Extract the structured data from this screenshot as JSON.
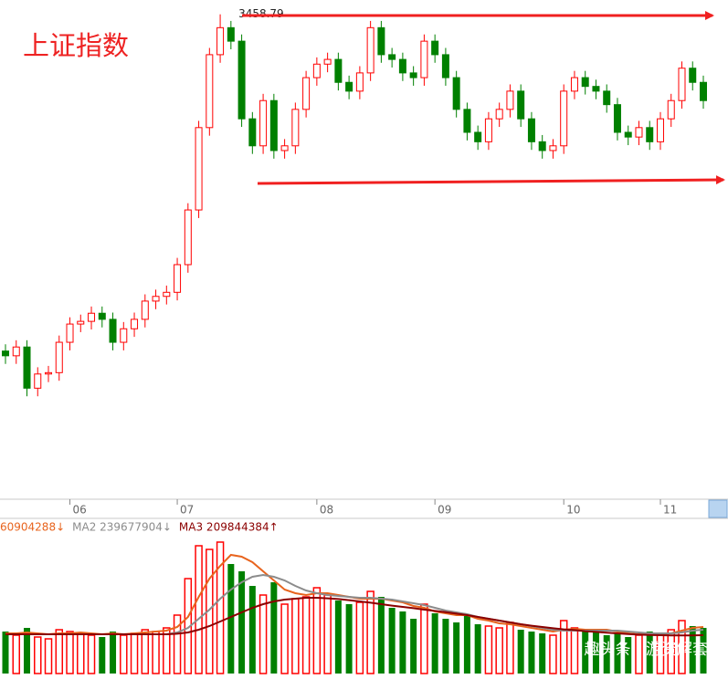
{
  "chart_data": {
    "type": "candlestick",
    "title": "上证指数",
    "watermark": "趣头条 | 游资解套",
    "categories": [
      null,
      null,
      null,
      null,
      null,
      null,
      "06",
      null,
      null,
      null,
      null,
      null,
      null,
      null,
      null,
      null,
      "07",
      null,
      null,
      null,
      null,
      null,
      null,
      null,
      null,
      null,
      null,
      null,
      null,
      "08",
      null,
      null,
      null,
      null,
      null,
      null,
      null,
      null,
      null,
      null,
      "09",
      null,
      null,
      null,
      null,
      null,
      null,
      null,
      null,
      null,
      null,
      null,
      "10",
      null,
      null,
      null,
      null,
      null,
      null,
      null,
      null,
      "11",
      null,
      null,
      null,
      null
    ],
    "open": [
      2960,
      2953,
      2966,
      2905,
      2926,
      2928,
      2973,
      3000,
      3004,
      3016,
      3007,
      2973,
      2993,
      3007,
      3034,
      3041,
      3047,
      3088,
      3169,
      3291,
      3399,
      3439,
      3419,
      3304,
      3264,
      3331,
      3257,
      3264,
      3318,
      3365,
      3385,
      3392,
      3358,
      3345,
      3372,
      3439,
      3399,
      3392,
      3372,
      3365,
      3419,
      3399,
      3365,
      3318,
      3284,
      3270,
      3304,
      3318,
      3345,
      3304,
      3270,
      3257,
      3264,
      3345,
      3365,
      3352,
      3345,
      3325,
      3284,
      3277,
      3291,
      3270,
      3304,
      3331,
      3379,
      3358
    ],
    "high": [
      2970,
      2976,
      2976,
      2936,
      2938,
      2983,
      3010,
      3014,
      3026,
      3026,
      3017,
      3003,
      3017,
      3044,
      3051,
      3057,
      3098,
      3179,
      3301,
      3409,
      3458.79,
      3449,
      3429,
      3314,
      3341,
      3341,
      3274,
      3328,
      3375,
      3395,
      3402,
      3402,
      3368,
      3382,
      3449,
      3449,
      3409,
      3402,
      3382,
      3429,
      3429,
      3409,
      3375,
      3328,
      3294,
      3314,
      3328,
      3355,
      3355,
      3314,
      3280,
      3274,
      3355,
      3375,
      3375,
      3362,
      3355,
      3335,
      3294,
      3301,
      3301,
      3314,
      3341,
      3389,
      3389,
      3368
    ],
    "low": [
      2941,
      2941,
      2893,
      2893,
      2914,
      2916,
      2961,
      2988,
      2992,
      2995,
      2961,
      2961,
      2981,
      2995,
      3022,
      3029,
      3035,
      3076,
      3157,
      3279,
      3387,
      3407,
      3292,
      3252,
      3252,
      3245,
      3245,
      3252,
      3306,
      3353,
      3373,
      3346,
      3333,
      3333,
      3360,
      3387,
      3380,
      3360,
      3353,
      3353,
      3387,
      3353,
      3306,
      3272,
      3258,
      3258,
      3292,
      3306,
      3292,
      3258,
      3245,
      3245,
      3252,
      3333,
      3340,
      3333,
      3313,
      3272,
      3265,
      3265,
      3258,
      3258,
      3292,
      3319,
      3346,
      3319
    ],
    "close": [
      2953,
      2966,
      2905,
      2926,
      2928,
      2973,
      3000,
      3004,
      3016,
      3007,
      2973,
      2993,
      3007,
      3034,
      3041,
      3047,
      3088,
      3169,
      3291,
      3399,
      3439,
      3419,
      3304,
      3264,
      3331,
      3257,
      3264,
      3318,
      3365,
      3385,
      3392,
      3358,
      3345,
      3372,
      3439,
      3399,
      3392,
      3372,
      3365,
      3419,
      3399,
      3365,
      3318,
      3284,
      3270,
      3304,
      3318,
      3345,
      3304,
      3270,
      3257,
      3264,
      3345,
      3365,
      3352,
      3345,
      3325,
      3284,
      3277,
      3291,
      3270,
      3304,
      3331,
      3379,
      3358,
      3331
    ],
    "ylim": [
      2750,
      3480
    ],
    "up_color": "#ff0000",
    "down_color": "#008000",
    "volume": [
      230000000,
      210000000,
      250000000,
      200000000,
      190000000,
      240000000,
      230000000,
      220000000,
      210000000,
      200000000,
      230000000,
      210000000,
      220000000,
      240000000,
      230000000,
      250000000,
      320000000,
      520000000,
      700000000,
      680000000,
      720000000,
      600000000,
      560000000,
      480000000,
      430000000,
      500000000,
      380000000,
      410000000,
      420000000,
      470000000,
      430000000,
      400000000,
      380000000,
      390000000,
      450000000,
      420000000,
      360000000,
      340000000,
      300000000,
      380000000,
      330000000,
      300000000,
      280000000,
      320000000,
      270000000,
      260000000,
      250000000,
      280000000,
      240000000,
      230000000,
      220000000,
      210000000,
      290000000,
      250000000,
      240000000,
      230000000,
      210000000,
      220000000,
      200000000,
      210000000,
      230000000,
      220000000,
      240000000,
      290000000,
      260000000,
      250000000
    ],
    "volume_ylim": [
      0,
      750000000
    ],
    "volume_series": [
      {
        "name": "60904288↓",
        "color": "#e8641e",
        "values": [
          220000000,
          220000000,
          225000000,
          220000000,
          215000000,
          220000000,
          220000000,
          225000000,
          220000000,
          215000000,
          220000000,
          215000000,
          220000000,
          225000000,
          230000000,
          235000000,
          255000000,
          310000000,
          420000000,
          520000000,
          590000000,
          650000000,
          640000000,
          610000000,
          560000000,
          510000000,
          460000000,
          440000000,
          430000000,
          440000000,
          440000000,
          430000000,
          420000000,
          410000000,
          410000000,
          410000000,
          400000000,
          390000000,
          370000000,
          360000000,
          340000000,
          330000000,
          320000000,
          320000000,
          300000000,
          290000000,
          275000000,
          270000000,
          260000000,
          250000000,
          240000000,
          230000000,
          240000000,
          245000000,
          240000000,
          240000000,
          240000000,
          230000000,
          220000000,
          215000000,
          215000000,
          215000000,
          220000000,
          235000000,
          250000000,
          255000000
        ]
      },
      {
        "name": "MA2 239677904↓",
        "color": "#8c8c8c",
        "values": [
          215000000,
          215000000,
          215000000,
          215000000,
          215000000,
          215000000,
          215000000,
          215000000,
          215000000,
          215000000,
          215000000,
          215000000,
          215000000,
          215000000,
          215000000,
          215000000,
          225000000,
          250000000,
          300000000,
          350000000,
          410000000,
          460000000,
          500000000,
          530000000,
          540000000,
          530000000,
          510000000,
          480000000,
          455000000,
          440000000,
          430000000,
          425000000,
          420000000,
          415000000,
          415000000,
          410000000,
          405000000,
          395000000,
          385000000,
          375000000,
          360000000,
          345000000,
          335000000,
          325000000,
          310000000,
          300000000,
          290000000,
          280000000,
          270000000,
          260000000,
          250000000,
          240000000,
          235000000,
          235000000,
          235000000,
          235000000,
          235000000,
          235000000,
          230000000,
          225000000,
          220000000,
          220000000,
          220000000,
          225000000,
          235000000,
          240000000
        ]
      },
      {
        "name": "MA3 209844384↑",
        "color": "#8b0000",
        "values": [
          215000000,
          215000000,
          215000000,
          215000000,
          215000000,
          215000000,
          215000000,
          215000000,
          215000000,
          215000000,
          215000000,
          215000000,
          215000000,
          215000000,
          215000000,
          215000000,
          218000000,
          225000000,
          240000000,
          260000000,
          285000000,
          310000000,
          335000000,
          360000000,
          380000000,
          395000000,
          405000000,
          410000000,
          415000000,
          415000000,
          412000000,
          408000000,
          402000000,
          395000000,
          388000000,
          380000000,
          372000000,
          365000000,
          358000000,
          350000000,
          343000000,
          336000000,
          328000000,
          320000000,
          310000000,
          300000000,
          290000000,
          280000000,
          270000000,
          262000000,
          255000000,
          248000000,
          242000000,
          238000000,
          232000000,
          228000000,
          224000000,
          220000000,
          216000000,
          213000000,
          211000000,
          210000000,
          209000000,
          209000000,
          209000000,
          210000000
        ]
      }
    ]
  }
}
